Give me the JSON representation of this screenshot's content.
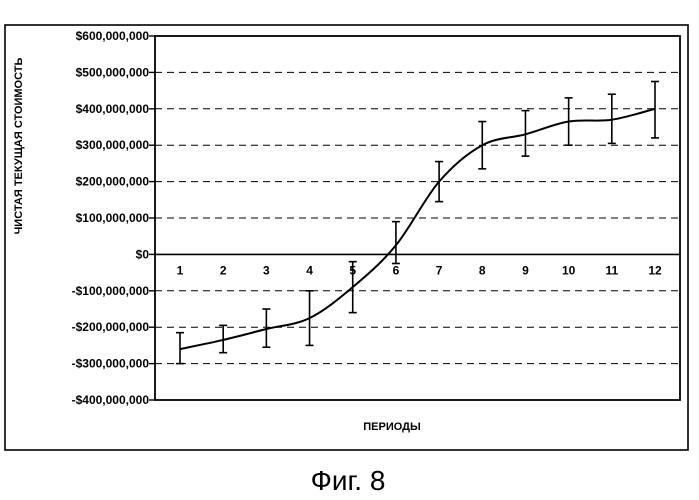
{
  "caption": "Фиг. 8",
  "chart_data": {
    "type": "line",
    "title": "",
    "xlabel": "ПЕРИОДЫ",
    "ylabel": "ЧИСТАЯ ТЕКУЩАЯ СТОИМОСТЬ",
    "x": [
      1,
      2,
      3,
      4,
      5,
      6,
      7,
      8,
      9,
      10,
      11,
      12
    ],
    "x_tick_labels": [
      "1",
      "2",
      "3",
      "4",
      "5",
      "6",
      "7",
      "8",
      "9",
      "10",
      "11",
      "12"
    ],
    "series": [
      {
        "values": [
          -260000000,
          -235000000,
          -205000000,
          -175000000,
          -90000000,
          25000000,
          200000000,
          300000000,
          330000000,
          365000000,
          370000000,
          400000000
        ],
        "error_low": [
          -300000000,
          -270000000,
          -255000000,
          -250000000,
          -160000000,
          -25000000,
          145000000,
          235000000,
          270000000,
          300000000,
          305000000,
          320000000
        ],
        "error_high": [
          -215000000,
          -195000000,
          -150000000,
          -100000000,
          -20000000,
          90000000,
          255000000,
          365000000,
          395000000,
          430000000,
          440000000,
          475000000
        ]
      }
    ],
    "ylim": [
      -400000000,
      600000000
    ],
    "y_ticks": [
      600000000,
      500000000,
      400000000,
      300000000,
      200000000,
      100000000,
      0,
      -100000000,
      -200000000,
      -300000000,
      -400000000
    ],
    "y_tick_labels": [
      "$600,000,000",
      "$500,000,000",
      "$400,000,000",
      "$300,000,000",
      "$200,000,000",
      "$100,000,000",
      "$0",
      "-$100,000,000",
      "-$200,000,000",
      "-$300,000,000",
      "-$400,000,000"
    ],
    "grid": "horizontal dashed",
    "legend": "none",
    "colors": {
      "line": "#000000",
      "grid": "#000000",
      "background": "#ffffff"
    }
  }
}
